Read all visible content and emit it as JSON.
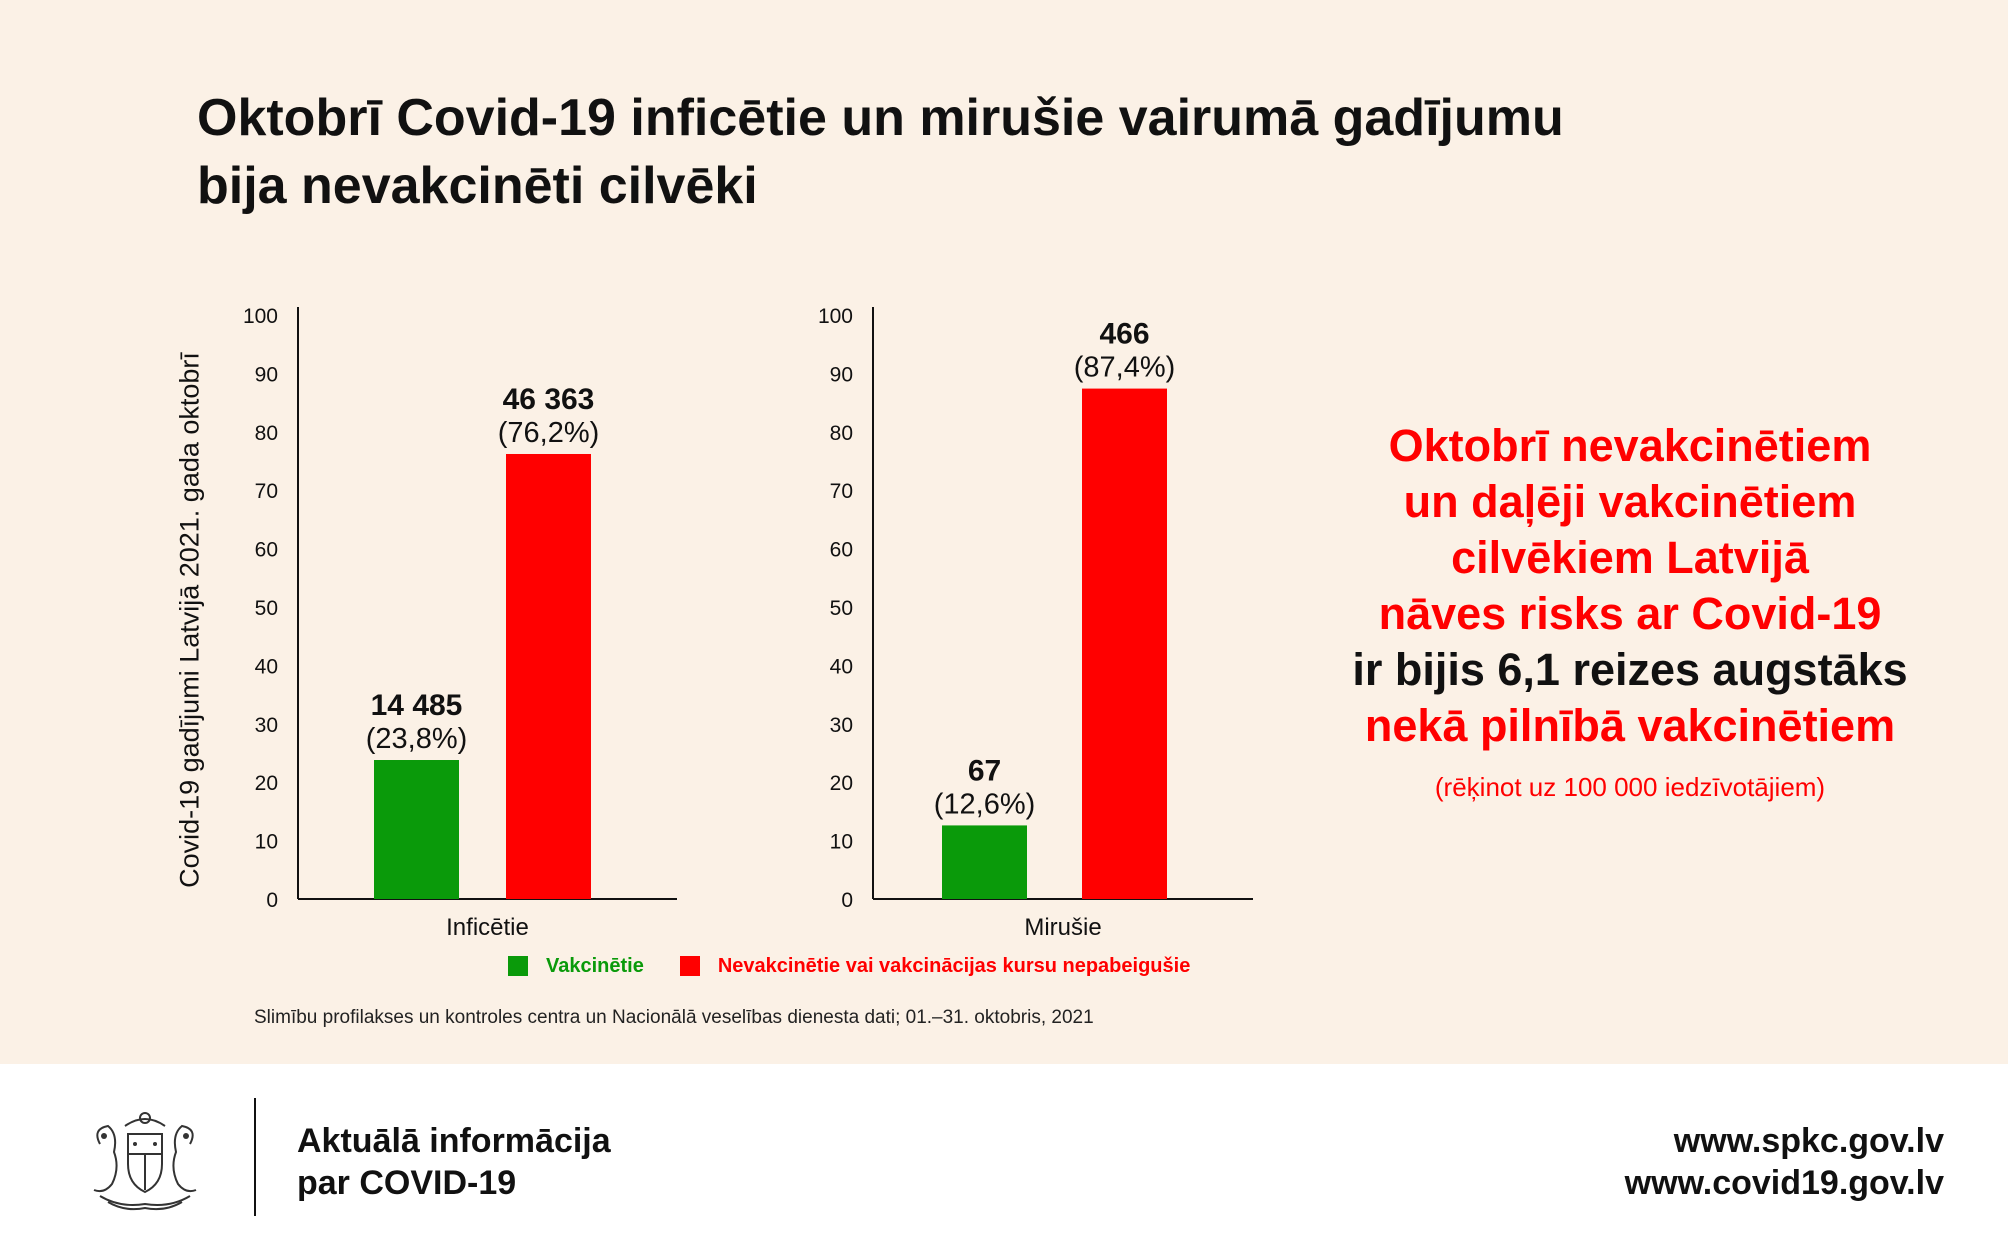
{
  "title_line1": "Oktobrī Covid-19 inficētie un mirušie vairumā gadījumu",
  "title_line2": "bija nevakcinēti cilvēki",
  "chart_data": {
    "type": "bar",
    "ylabel": "Covid-19 gadījumi Latvijā 2021. gada oktobrī",
    "ylim": [
      0,
      100
    ],
    "yticks": [
      0,
      10,
      20,
      30,
      40,
      50,
      60,
      70,
      80,
      90,
      100
    ],
    "categories": [
      "Inficētie",
      "Mirušie"
    ],
    "series": [
      {
        "name": "Vakcinētie",
        "color": "#0a9a0a",
        "values": [
          23.8,
          12.6
        ],
        "counts": [
          "14 485",
          "67"
        ],
        "percent_labels": [
          "(23,8%)",
          "(12,6%)"
        ]
      },
      {
        "name": "Nevakcinētie vai vakcinācijas kursu nepabeigušie",
        "color": "#ff0000",
        "values": [
          76.2,
          87.4
        ],
        "counts": [
          "46 363",
          "466"
        ],
        "percent_labels": [
          "(76,2%)",
          "(87,4%)"
        ]
      }
    ],
    "grid": false,
    "legend_position": "bottom"
  },
  "legend": {
    "vaccinated": "Vakcinētie",
    "unvaccinated": "Nevakcinētie vai vakcinācijas kursu nepabeigušie"
  },
  "source": "Slimību profilakses un kontroles centra un Nacionālā veselības dienesta dati; 01.–31. oktobris, 2021",
  "side_message": {
    "lines": [
      "Oktobrī nevakcinētiem",
      "un daļēji vakcinētiem",
      "cilvēkiem Latvijā",
      "nāves risks ar Covid-19",
      "ir bijis 6,1 reizes augstāks",
      "nekā pilnībā vakcinētiem"
    ],
    "note": "(rēķinot uz 100 000 iedzīvotājiem)",
    "accent_color": "#ff0000",
    "black_color": "#111111"
  },
  "footer": {
    "left_line1": "Aktuālā informācija",
    "left_line2": "par COVID-19",
    "right_line1": "www.spkc.gov.lv",
    "right_line2": "www.covid19.gov.lv"
  },
  "colors": {
    "background": "#fbf1e6",
    "footer_background": "#ffffff",
    "green": "#0a9a0a",
    "red": "#ff0000"
  }
}
